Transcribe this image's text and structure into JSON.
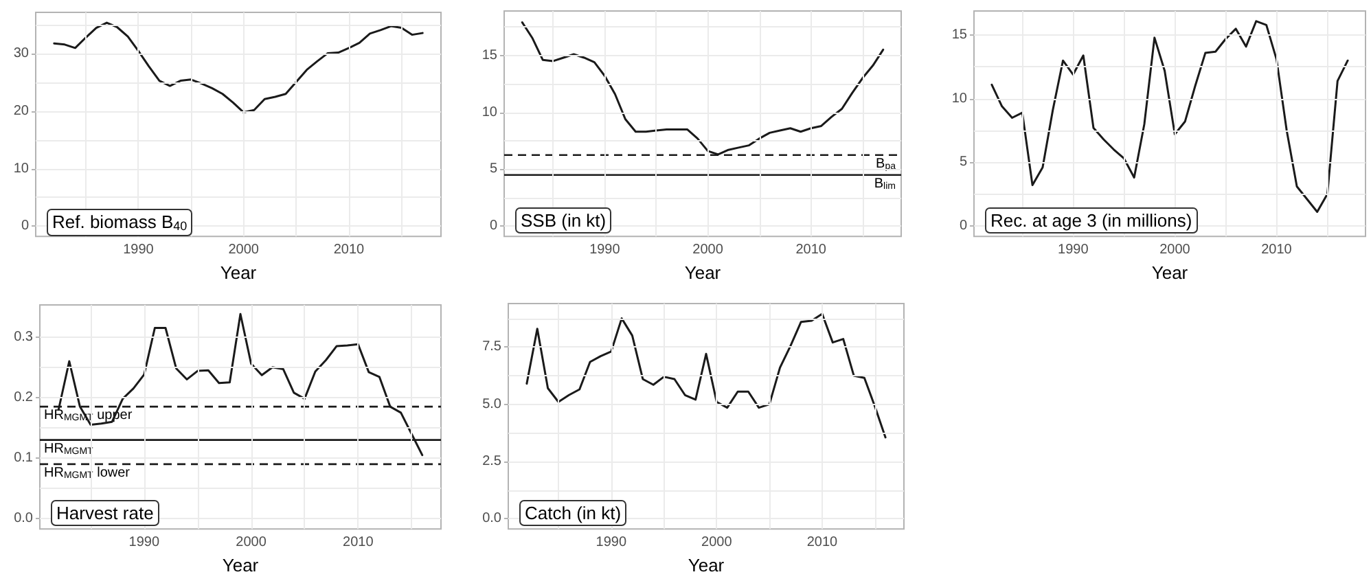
{
  "chart_data": [
    {
      "type": "line",
      "title": "Ref. biomass B$_{40}$",
      "xlabel": "Year",
      "xlim": [
        1980.25,
        2018.75
      ],
      "xticks": [
        {
          "value": 1985,
          "label": null
        },
        1990,
        {
          "value": 1995,
          "label": null
        },
        2000,
        {
          "value": 2005,
          "label": null
        },
        2010,
        {
          "value": 2015,
          "label": null
        }
      ],
      "ylim": [
        -1.8,
        37.2
      ],
      "yticks": [
        0,
        {
          "value": 5,
          "label": null
        },
        10,
        {
          "value": 15,
          "label": null
        },
        20,
        {
          "value": 25,
          "label": null
        },
        30,
        {
          "value": 35,
          "label": null
        }
      ],
      "grid": true,
      "marker": "none",
      "line_style": "solid",
      "series": [
        {
          "color": "#1a1a1a",
          "x": [
            1982,
            1983,
            1984,
            1985,
            1986,
            1987,
            1988,
            1989,
            1990,
            1991,
            1992,
            1993,
            1994,
            1995,
            1996,
            1997,
            1998,
            1999,
            2000,
            2001,
            2002,
            2003,
            2004,
            2005,
            2006,
            2007,
            2008,
            2009,
            2010,
            2011,
            2012,
            2013,
            2014,
            2015,
            2016,
            2017
          ],
          "values": [
            31.8,
            31.6,
            31.0,
            32.8,
            34.5,
            35.4,
            34.6,
            33.0,
            30.5,
            27.8,
            25.3,
            24.4,
            25.3,
            25.5,
            24.8,
            24.0,
            23.0,
            21.5,
            19.8,
            20.2,
            22.1,
            22.5,
            23.0,
            25.1,
            27.2,
            28.7,
            30.1,
            30.2,
            31.0,
            31.9,
            33.5,
            34.1,
            34.8,
            34.5,
            33.3,
            33.6
          ]
        }
      ]
    },
    {
      "type": "line",
      "title": "SSB (in kt)",
      "xlabel": "Year",
      "xlim": [
        1980.25,
        2018.75
      ],
      "xticks": [
        {
          "value": 1985,
          "label": null
        },
        1990,
        {
          "value": 1995,
          "label": null
        },
        2000,
        {
          "value": 2005,
          "label": null
        },
        2010,
        {
          "value": 2015,
          "label": null
        }
      ],
      "ylim": [
        -0.9,
        18.9
      ],
      "yticks": [
        0,
        {
          "value": 2.5,
          "label": null
        },
        5,
        {
          "value": 7.5,
          "label": null
        },
        10,
        {
          "value": 12.5,
          "label": null
        },
        15,
        {
          "value": 17.5,
          "label": null
        }
      ],
      "grid": true,
      "marker": "none",
      "line_style": "solid",
      "ref_lines": [
        {
          "axis": "y",
          "value": 6.25,
          "label": "B$_{pa}$",
          "color": "#1a1a1a",
          "line_style": "dashed"
        },
        {
          "axis": "y",
          "value": 4.5,
          "label": "B$_{lim}$",
          "color": "#1a1a1a",
          "line_style": "solid"
        }
      ],
      "series": [
        {
          "color": "#1a1a1a",
          "x": [
            1982,
            1983,
            1984,
            1985,
            1986,
            1987,
            1988,
            1989,
            1990,
            1991,
            1992,
            1993,
            1994,
            1995,
            1996,
            1997,
            1998,
            1999,
            2000,
            2001,
            2002,
            2003,
            2004,
            2005,
            2006,
            2007,
            2008,
            2009,
            2010,
            2011,
            2012,
            2013,
            2014,
            2015,
            2016,
            2017
          ],
          "values": [
            17.9,
            16.5,
            14.6,
            14.5,
            14.8,
            15.1,
            14.8,
            14.4,
            13.2,
            11.6,
            9.4,
            8.3,
            8.3,
            8.4,
            8.5,
            8.5,
            8.5,
            7.7,
            6.6,
            6.3,
            6.7,
            6.9,
            7.1,
            7.7,
            8.2,
            8.4,
            8.6,
            8.3,
            8.6,
            8.8,
            9.6,
            10.3,
            11.7,
            13.0,
            14.1,
            15.5
          ]
        }
      ]
    },
    {
      "type": "line",
      "title": "Rec. at age 3 (in millions)",
      "xlabel": "Year",
      "xlim": [
        1980.25,
        2018.75
      ],
      "xticks": [
        {
          "value": 1985,
          "label": null
        },
        1990,
        {
          "value": 1995,
          "label": null
        },
        2000,
        {
          "value": 2005,
          "label": null
        },
        2010,
        {
          "value": 2015,
          "label": null
        }
      ],
      "ylim": [
        -0.83,
        16.9
      ],
      "yticks": [
        0,
        {
          "value": 2.5,
          "label": null
        },
        5,
        {
          "value": 7.5,
          "label": null
        },
        10,
        {
          "value": 12.5,
          "label": null
        },
        15
      ],
      "grid": true,
      "marker": "none",
      "line_style": "solid",
      "series": [
        {
          "color": "#1a1a1a",
          "x": [
            1982,
            1983,
            1984,
            1985,
            1986,
            1987,
            1988,
            1989,
            1990,
            1991,
            1992,
            1993,
            1994,
            1995,
            1996,
            1997,
            1998,
            1999,
            2000,
            2001,
            2002,
            2003,
            2004,
            2005,
            2006,
            2007,
            2008,
            2009,
            2010,
            2011,
            2012,
            2013,
            2014,
            2015,
            2016,
            2017
          ],
          "values": [
            11.1,
            9.4,
            8.5,
            8.9,
            3.2,
            4.6,
            9.1,
            13.0,
            11.9,
            13.4,
            7.7,
            6.8,
            6.0,
            5.3,
            3.8,
            8.0,
            14.8,
            12.2,
            7.2,
            8.2,
            11.0,
            13.6,
            13.7,
            14.7,
            15.5,
            14.1,
            16.1,
            15.8,
            13.1,
            7.5,
            3.1,
            2.1,
            1.1,
            2.5,
            11.4,
            13.0
          ]
        }
      ]
    },
    {
      "type": "line",
      "title": "Harvest rate",
      "xlabel": "Year",
      "xlim": [
        1980.25,
        2017.75
      ],
      "xticks": [
        {
          "value": 1985,
          "label": null
        },
        1990,
        {
          "value": 1995,
          "label": null
        },
        2000,
        {
          "value": 2005,
          "label": null
        },
        2010,
        {
          "value": 2015,
          "label": null
        }
      ],
      "ylim": [
        -0.017,
        0.353
      ],
      "yticks": [
        {
          "value": 0,
          "label": "0.0"
        },
        {
          "value": 0.05,
          "label": null
        },
        0.1,
        {
          "value": 0.15,
          "label": null
        },
        0.2,
        {
          "value": 0.25,
          "label": null
        },
        0.3
      ],
      "grid": true,
      "marker": "none",
      "line_style": "solid",
      "ref_lines": [
        {
          "axis": "y",
          "value": 0.185,
          "label": "HR$_{MGMT}$ upper",
          "color": "#1a1a1a",
          "line_style": "dashed"
        },
        {
          "axis": "y",
          "value": 0.13,
          "label": "HR$_{MGMT}$",
          "color": "#1a1a1a",
          "line_style": "solid"
        },
        {
          "axis": "y",
          "value": 0.09,
          "label": "HR$_{MGMT}$ lower",
          "color": "#1a1a1a",
          "line_style": "dashed"
        }
      ],
      "series": [
        {
          "color": "#1a1a1a",
          "x": [
            1982,
            1983,
            1984,
            1985,
            1986,
            1987,
            1988,
            1989,
            1990,
            1991,
            1992,
            1993,
            1994,
            1995,
            1996,
            1997,
            1998,
            1999,
            2000,
            2001,
            2002,
            2003,
            2004,
            2005,
            2006,
            2007,
            2008,
            2009,
            2010,
            2011,
            2012,
            2013,
            2014,
            2015,
            2016
          ],
          "values": [
            0.18,
            0.26,
            0.185,
            0.155,
            0.157,
            0.16,
            0.198,
            0.215,
            0.238,
            0.315,
            0.315,
            0.248,
            0.23,
            0.244,
            0.245,
            0.224,
            0.225,
            0.338,
            0.256,
            0.237,
            0.25,
            0.247,
            0.208,
            0.198,
            0.243,
            0.262,
            0.285,
            0.286,
            0.288,
            0.242,
            0.234,
            0.185,
            0.175,
            0.14,
            0.105
          ]
        }
      ]
    },
    {
      "type": "line",
      "title": "Catch (in kt)",
      "xlabel": "Year",
      "xlim": [
        1980.25,
        2017.75
      ],
      "xticks": [
        {
          "value": 1985,
          "label": null
        },
        1990,
        {
          "value": 1995,
          "label": null
        },
        2000,
        {
          "value": 2005,
          "label": null
        },
        2010,
        {
          "value": 2015,
          "label": null
        }
      ],
      "ylim": [
        -0.45,
        9.4
      ],
      "yticks": [
        {
          "value": 0,
          "label": "0.0"
        },
        {
          "value": 1.25,
          "label": null
        },
        2.5,
        {
          "value": 3.75,
          "label": null
        },
        {
          "value": 5,
          "label": "5.0"
        },
        {
          "value": 6.25,
          "label": null
        },
        7.5,
        {
          "value": 8.75,
          "label": null
        }
      ],
      "grid": true,
      "marker": "none",
      "line_style": "solid",
      "series": [
        {
          "color": "#1a1a1a",
          "x": [
            1982,
            1983,
            1984,
            1985,
            1986,
            1987,
            1988,
            1989,
            1990,
            1991,
            1992,
            1993,
            1994,
            1995,
            1996,
            1997,
            1998,
            1999,
            2000,
            2001,
            2002,
            2003,
            2004,
            2005,
            2006,
            2007,
            2008,
            2009,
            2010,
            2011,
            2012,
            2013,
            2014,
            2015,
            2016
          ],
          "values": [
            5.9,
            8.3,
            5.7,
            5.1,
            5.4,
            5.65,
            6.85,
            7.1,
            7.3,
            8.75,
            8.0,
            6.1,
            5.85,
            6.2,
            6.1,
            5.4,
            5.2,
            7.2,
            5.1,
            4.85,
            5.55,
            5.55,
            4.85,
            5.0,
            6.6,
            7.55,
            8.6,
            8.65,
            8.95,
            7.7,
            7.85,
            6.25,
            6.15,
            4.9,
            3.55
          ]
        }
      ]
    }
  ]
}
